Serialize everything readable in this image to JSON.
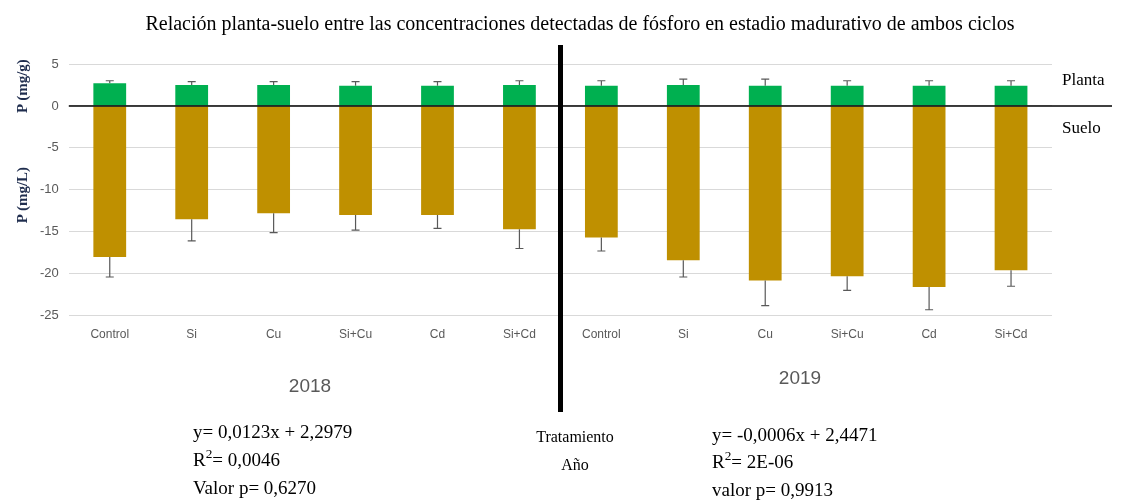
{
  "chart_data": {
    "type": "bar",
    "title": "Relación planta-suelo entre las concentraciones detectadas de fósforo en estadio madurativo de ambos ciclos",
    "ylabel": "P (mg/L)",
    "categories": [
      "Control",
      "Si",
      "Cu",
      "Si+Cu",
      "Cd",
      "Si+Cd",
      "Control",
      "Si",
      "Cu",
      "Si+Cu",
      "Cd",
      "Si+Cd"
    ],
    "series": [
      {
        "name": "Planta",
        "color": "#00b050",
        "values": [
          2.7,
          2.5,
          2.5,
          2.4,
          2.4,
          2.5,
          2.4,
          2.5,
          2.4,
          2.4,
          2.4,
          2.4
        ],
        "errors": [
          [
            2.7,
            3.0
          ],
          [
            2.5,
            2.9
          ],
          [
            2.5,
            2.9
          ],
          [
            2.4,
            2.9
          ],
          [
            2.4,
            2.9
          ],
          [
            2.5,
            3.0
          ],
          [
            2.4,
            3.0
          ],
          [
            2.5,
            3.2
          ],
          [
            2.4,
            3.2
          ],
          [
            2.4,
            3.0
          ],
          [
            2.4,
            3.0
          ],
          [
            2.4,
            3.0
          ]
        ]
      },
      {
        "name": "Suelo",
        "color": "#bf9000",
        "values": [
          -18,
          -13.5,
          -12.8,
          -13,
          -13,
          -14.7,
          -15.7,
          -18.4,
          -20.8,
          -20.3,
          -21.6,
          -19.6
        ],
        "errors": [
          [
            -20.4,
            -18
          ],
          [
            -16.1,
            -13.5
          ],
          [
            -15.1,
            -12.8
          ],
          [
            -14.8,
            -13
          ],
          [
            -14.6,
            -13
          ],
          [
            -17,
            -14.7
          ],
          [
            -17.3,
            -15.7
          ],
          [
            -20.4,
            -18.4
          ],
          [
            -23.8,
            -20.8
          ],
          [
            -22,
            -20.3
          ],
          [
            -24.3,
            -21.6
          ],
          [
            -21.5,
            -19.6
          ]
        ]
      }
    ],
    "stacked": true,
    "ylim": [
      -25,
      5
    ],
    "yticks": [
      -25,
      -20,
      -15,
      -10,
      -5,
      0,
      5
    ],
    "grid": "y",
    "legend": false,
    "annotations": [
      "P (mg/g)",
      "2018",
      "2019",
      "y= 0,0123x + 2,2979",
      "R$^{2}$= 0,0046",
      "Valor p= 0,6270",
      "Tratamiento",
      "Año",
      "y= -0,0006x + 2,4471",
      "R$^{2}$= 2E-06",
      "valor p= 0,9913"
    ]
  }
}
